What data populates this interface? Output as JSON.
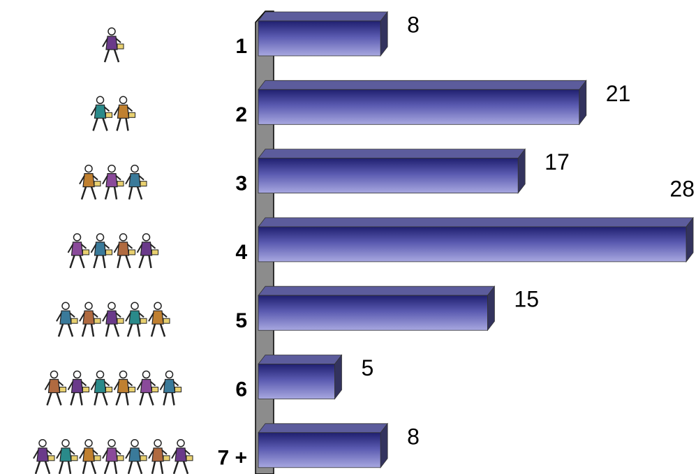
{
  "chart_data": {
    "type": "bar",
    "orientation": "horizontal",
    "categories": [
      "1",
      "2",
      "3",
      "4",
      "5",
      "6",
      "7 +"
    ],
    "values": [
      8,
      21,
      17,
      28,
      15,
      5,
      8
    ],
    "color": "#4a4aa8"
  }
}
